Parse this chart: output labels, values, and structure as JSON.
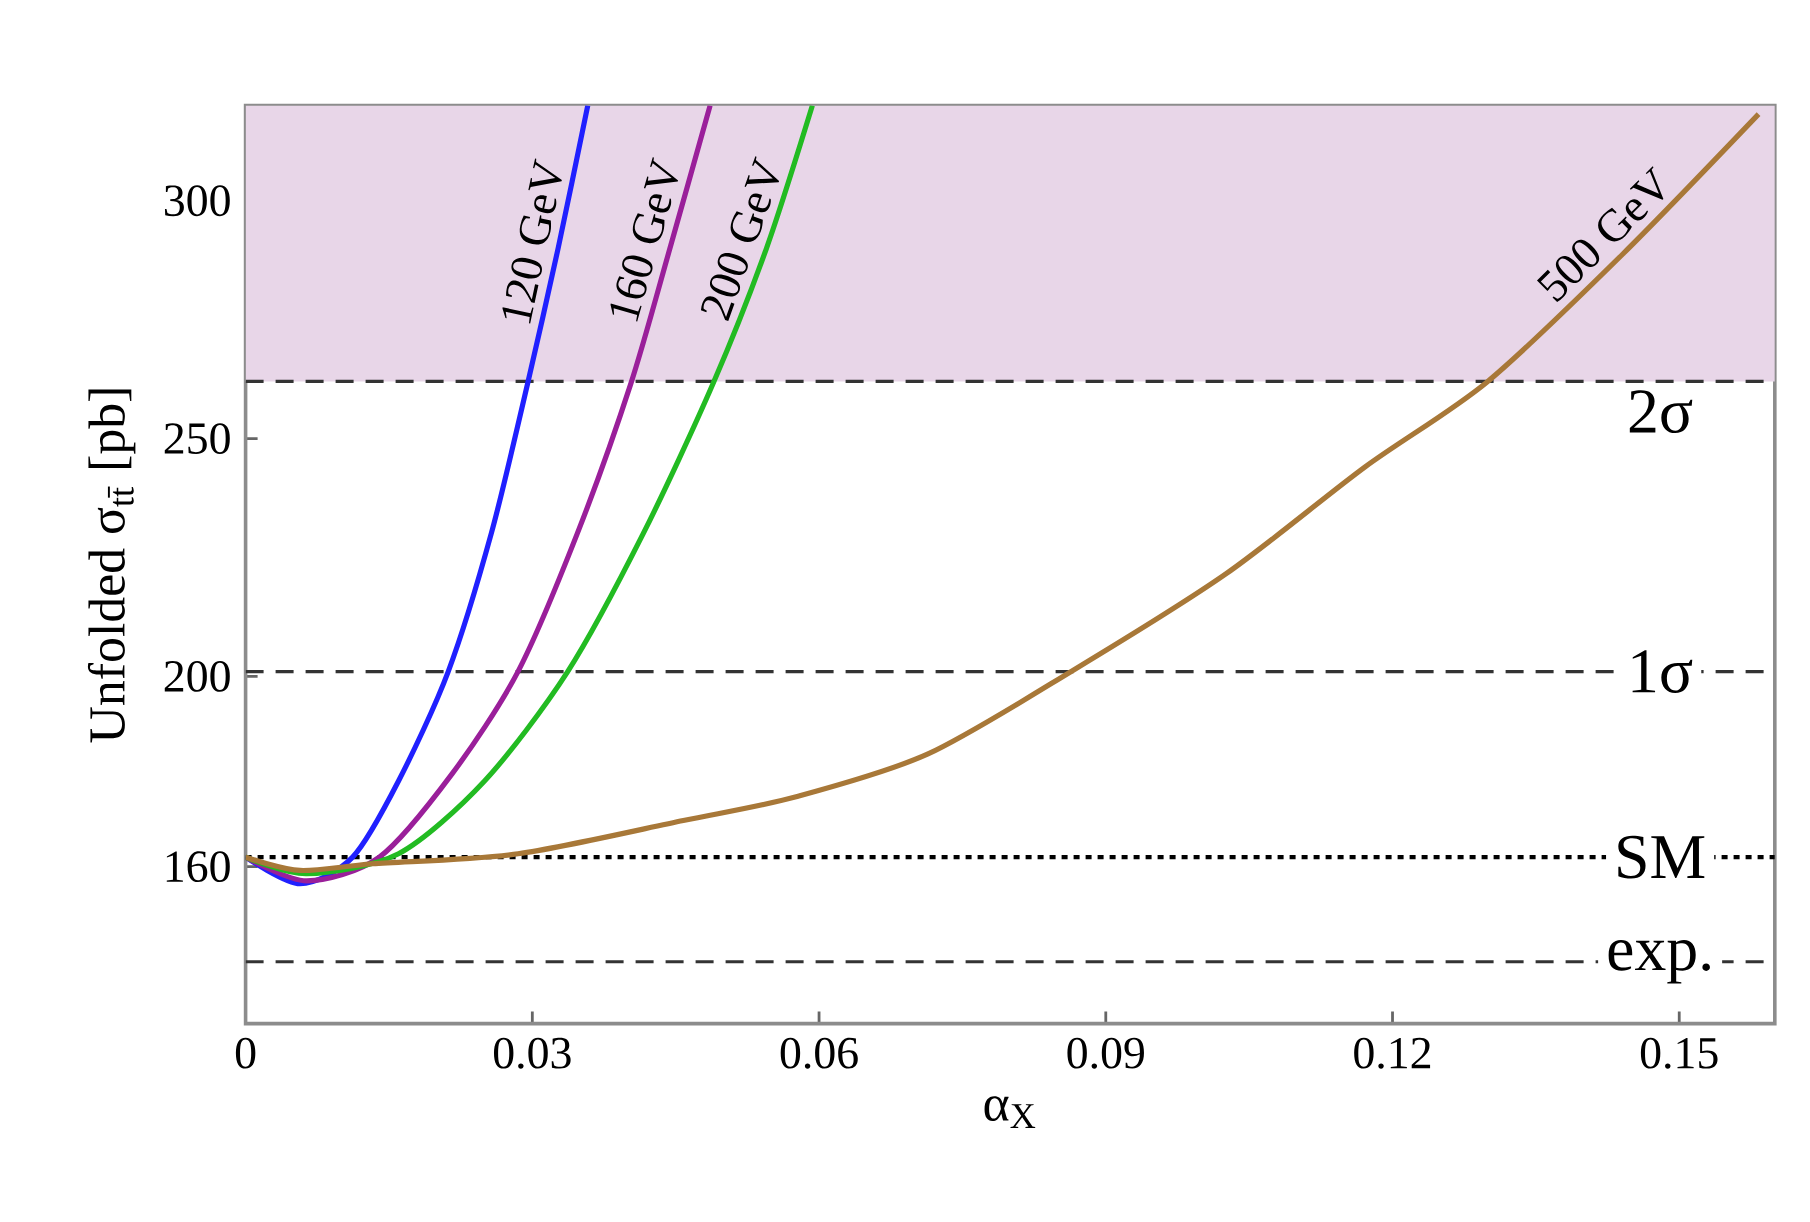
{
  "chart_data": {
    "type": "line",
    "xlabel": "α$_{X}$",
    "ylabel": "Unfolded σ$_{tt̄}$ [pb]",
    "xlim": [
      0,
      0.16
    ],
    "ylim": [
      127,
      320
    ],
    "xticks": [
      0,
      0.03,
      0.06,
      0.09,
      0.12,
      0.15
    ],
    "yticks": [
      160,
      200,
      250,
      300
    ],
    "series": [
      {
        "name": "120 GeV",
        "color": "#2020ff",
        "x": [
          0,
          0.0057,
          0.0112,
          0.016,
          0.0212,
          0.0257,
          0.0295,
          0.0327,
          0.0358
        ],
        "values": [
          162,
          156.4,
          162,
          178,
          201,
          230,
          261.5,
          290,
          320
        ]
      },
      {
        "name": "160 GeV",
        "color": "#9a1f9a",
        "x": [
          0,
          0.0064,
          0.014,
          0.0216,
          0.0285,
          0.0347,
          0.0403,
          0.0444,
          0.0486
        ],
        "values": [
          162,
          157,
          162,
          179.5,
          201,
          230,
          261.5,
          290,
          320
        ]
      },
      {
        "name": "200 GeV",
        "color": "#22bb22",
        "x": [
          0,
          0.0064,
          0.016,
          0.025,
          0.0337,
          0.0416,
          0.0489,
          0.0545,
          0.0593
        ],
        "values": [
          162,
          158.5,
          162.7,
          178,
          201,
          230,
          261.5,
          290,
          320
        ]
      },
      {
        "name": "500 GeV",
        "color": "#a87838",
        "x": [
          0,
          0.0057,
          0.0133,
          0.0285,
          0.0458,
          0.0576,
          0.0714,
          0.0866,
          0.1026,
          0.1171,
          0.1299,
          0.1441,
          0.1583
        ],
        "values": [
          162,
          159.2,
          160.6,
          162.7,
          169.7,
          174.7,
          183.7,
          201.3,
          221.6,
          244,
          261.9,
          288.8,
          318.2
        ]
      }
    ],
    "ref_lines": [
      {
        "axis": "y",
        "value": 262,
        "label": "2σ",
        "line_style": "dashed",
        "color": "#333333"
      },
      {
        "axis": "y",
        "value": 201,
        "label": "1σ",
        "line_style": "dashed",
        "color": "#333333"
      },
      {
        "axis": "y",
        "value": 162,
        "label": "SM",
        "line_style": "dotted",
        "color": "#000000"
      },
      {
        "axis": "y",
        "value": 140,
        "label": "exp.",
        "line_style": "dashed",
        "color": "#333333"
      }
    ],
    "bands": [
      {
        "axis": "y",
        "from": 262,
        "to": 320,
        "color": "#e8d6e8"
      }
    ]
  }
}
